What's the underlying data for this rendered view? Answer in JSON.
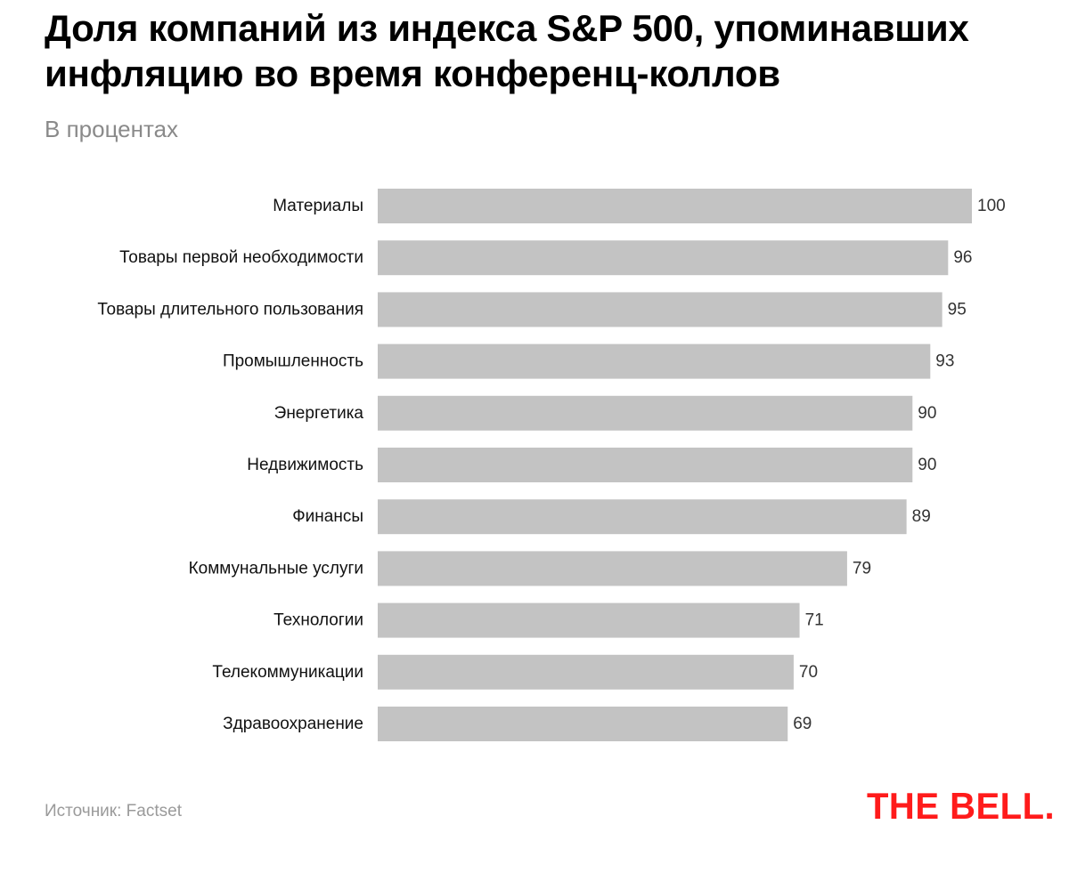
{
  "header": {
    "title": "Доля компаний из индекса S&P 500, упоминавших инфляцию во время конференц-коллов",
    "subtitle": "В процентах"
  },
  "footer": {
    "source": "Источник: Factset",
    "logo_text": "THE BELL."
  },
  "colors": {
    "bar": "#c3c3c3",
    "logo": "#ff1b1b"
  },
  "chart_data": {
    "type": "bar",
    "orientation": "horizontal",
    "title": "Доля компаний из индекса S&P 500, упоминавших инфляцию во время конференц-коллов",
    "subtitle": "В процентах",
    "xlabel": "",
    "ylabel": "",
    "xlim": [
      0,
      100
    ],
    "grid": false,
    "categories": [
      "Материалы",
      "Товары первой необходимости",
      "Товары длительного пользования",
      "Промышленность",
      "Энергетика",
      "Недвижимость",
      "Финансы",
      "Коммунальные услуги",
      "Технологии",
      "Телекоммуникации",
      "Здравоохранение"
    ],
    "values": [
      100,
      96,
      95,
      93,
      90,
      90,
      89,
      79,
      71,
      70,
      69
    ]
  }
}
